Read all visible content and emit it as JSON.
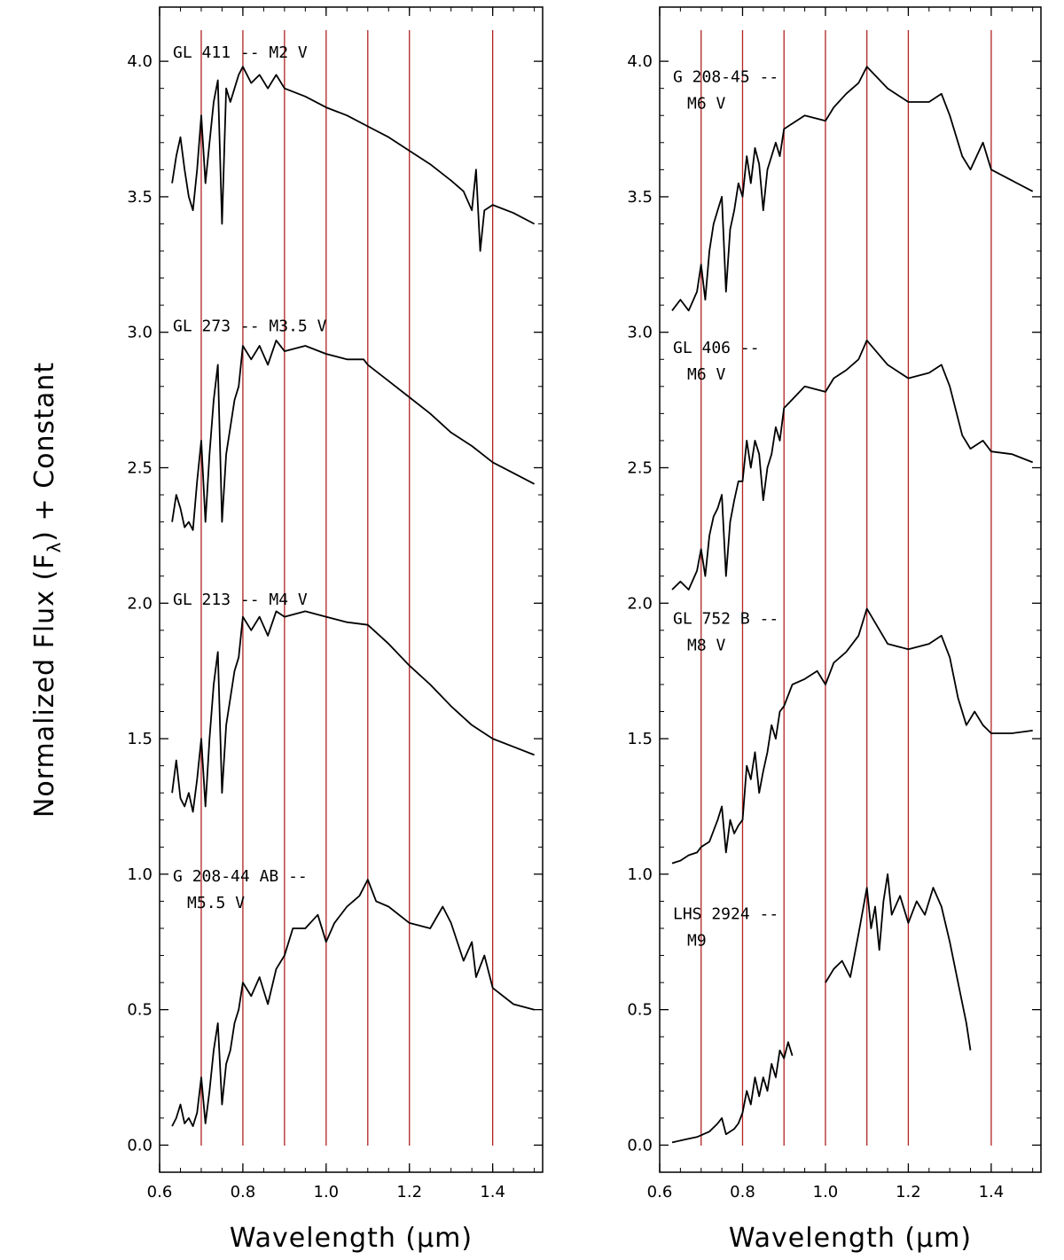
{
  "figure": {
    "ylabel": "Normalized Flux (F",
    "ylabel_sub": "λ",
    "ylabel_tail": ") + Constant"
  },
  "chart_data": [
    {
      "type": "line",
      "panel": "left",
      "xlabel": "Wavelength (μm)",
      "xlim": [
        0.6,
        1.52
      ],
      "ylim": [
        -0.1,
        4.2
      ],
      "xticks": [
        0.6,
        0.8,
        1.0,
        1.2,
        1.4
      ],
      "xtick_labels": [
        "0.6",
        "0.8",
        "1.0",
        "1.2",
        "1.4"
      ],
      "yticks": [
        0.0,
        0.5,
        1.0,
        1.5,
        2.0,
        2.5,
        3.0,
        3.5,
        4.0
      ],
      "ytick_labels": [
        "0.0",
        "0.5",
        "1.0",
        "1.5",
        "2.0",
        "2.5",
        "3.0",
        "3.5",
        "4.0"
      ],
      "reference_lines_x": [
        0.7,
        0.8,
        0.9,
        1.0,
        1.1,
        1.2,
        1.4
      ],
      "series": [
        {
          "name": "GL 411 -- M2 V",
          "label_lines": [
            "GL 411 -- M2 V"
          ],
          "label_pos": [
            0.615,
            4.04
          ],
          "x": [
            0.63,
            0.64,
            0.65,
            0.66,
            0.67,
            0.68,
            0.69,
            0.7,
            0.71,
            0.72,
            0.73,
            0.74,
            0.75,
            0.76,
            0.77,
            0.78,
            0.79,
            0.8,
            0.82,
            0.84,
            0.86,
            0.88,
            0.9,
            0.95,
            1.0,
            1.05,
            1.1,
            1.15,
            1.2,
            1.25,
            1.3,
            1.33,
            1.35,
            1.36,
            1.37,
            1.38,
            1.4,
            1.45,
            1.5
          ],
          "y": [
            3.55,
            3.65,
            3.72,
            3.6,
            3.5,
            3.45,
            3.6,
            3.8,
            3.55,
            3.7,
            3.85,
            3.93,
            3.4,
            3.9,
            3.85,
            3.9,
            3.95,
            3.98,
            3.92,
            3.95,
            3.9,
            3.95,
            3.9,
            3.87,
            3.83,
            3.8,
            3.76,
            3.72,
            3.67,
            3.62,
            3.56,
            3.52,
            3.45,
            3.6,
            3.3,
            3.45,
            3.47,
            3.44,
            3.4
          ]
        },
        {
          "name": "GL 273 -- M3.5 V",
          "label_lines": [
            "GL 273 -- M3.5 V"
          ],
          "label_pos": [
            0.615,
            3.03
          ],
          "x": [
            0.63,
            0.64,
            0.65,
            0.66,
            0.67,
            0.68,
            0.69,
            0.7,
            0.71,
            0.72,
            0.73,
            0.74,
            0.75,
            0.76,
            0.77,
            0.78,
            0.79,
            0.8,
            0.82,
            0.84,
            0.86,
            0.88,
            0.9,
            0.95,
            1.0,
            1.05,
            1.09,
            1.1,
            1.15,
            1.2,
            1.25,
            1.3,
            1.35,
            1.4,
            1.45,
            1.5
          ],
          "y": [
            2.3,
            2.4,
            2.35,
            2.28,
            2.3,
            2.27,
            2.45,
            2.6,
            2.3,
            2.55,
            2.75,
            2.88,
            2.3,
            2.55,
            2.65,
            2.75,
            2.8,
            2.95,
            2.9,
            2.95,
            2.88,
            2.97,
            2.93,
            2.95,
            2.92,
            2.9,
            2.9,
            2.88,
            2.82,
            2.76,
            2.7,
            2.63,
            2.58,
            2.52,
            2.48,
            2.44
          ]
        },
        {
          "name": "GL 213 -- M4 V",
          "label_lines": [
            "GL 213 -- M4 V"
          ],
          "label_pos": [
            0.615,
            2.02
          ],
          "x": [
            0.63,
            0.64,
            0.65,
            0.66,
            0.67,
            0.68,
            0.69,
            0.7,
            0.71,
            0.72,
            0.73,
            0.74,
            0.75,
            0.76,
            0.77,
            0.78,
            0.79,
            0.8,
            0.82,
            0.84,
            0.86,
            0.88,
            0.9,
            0.95,
            1.0,
            1.05,
            1.1,
            1.15,
            1.2,
            1.25,
            1.3,
            1.35,
            1.4,
            1.45,
            1.5
          ],
          "y": [
            1.3,
            1.42,
            1.28,
            1.25,
            1.3,
            1.23,
            1.35,
            1.5,
            1.25,
            1.5,
            1.7,
            1.82,
            1.3,
            1.55,
            1.65,
            1.75,
            1.8,
            1.95,
            1.9,
            1.95,
            1.88,
            1.97,
            1.95,
            1.97,
            1.95,
            1.93,
            1.92,
            1.85,
            1.77,
            1.7,
            1.62,
            1.55,
            1.5,
            1.47,
            1.44
          ]
        },
        {
          "name": "G 208-44 AB -- M5.5 V",
          "label_lines": [
            "G 208-44 AB --",
            "M5.5 V"
          ],
          "label_pos": [
            0.615,
            1.0
          ],
          "x": [
            0.63,
            0.64,
            0.65,
            0.66,
            0.67,
            0.68,
            0.69,
            0.7,
            0.71,
            0.72,
            0.73,
            0.74,
            0.75,
            0.76,
            0.77,
            0.78,
            0.79,
            0.8,
            0.82,
            0.84,
            0.86,
            0.88,
            0.9,
            0.92,
            0.95,
            0.98,
            1.0,
            1.02,
            1.05,
            1.08,
            1.1,
            1.12,
            1.15,
            1.2,
            1.25,
            1.28,
            1.3,
            1.33,
            1.35,
            1.36,
            1.38,
            1.4,
            1.45,
            1.5
          ],
          "y": [
            0.07,
            0.1,
            0.15,
            0.08,
            0.1,
            0.07,
            0.12,
            0.25,
            0.08,
            0.2,
            0.35,
            0.45,
            0.15,
            0.3,
            0.35,
            0.45,
            0.5,
            0.6,
            0.55,
            0.62,
            0.52,
            0.65,
            0.7,
            0.8,
            0.8,
            0.85,
            0.75,
            0.82,
            0.88,
            0.92,
            0.98,
            0.9,
            0.88,
            0.82,
            0.8,
            0.88,
            0.82,
            0.68,
            0.75,
            0.62,
            0.7,
            0.58,
            0.52,
            0.5
          ]
        }
      ]
    },
    {
      "type": "line",
      "panel": "right",
      "xlabel": "Wavelength (μm)",
      "xlim": [
        0.6,
        1.52
      ],
      "ylim": [
        -0.1,
        4.2
      ],
      "xticks": [
        0.6,
        0.8,
        1.0,
        1.2,
        1.4
      ],
      "xtick_labels": [
        "0.6",
        "0.8",
        "1.0",
        "1.2",
        "1.4"
      ],
      "yticks": [
        0.0,
        0.5,
        1.0,
        1.5,
        2.0,
        2.5,
        3.0,
        3.5,
        4.0
      ],
      "ytick_labels": [
        "0.0",
        "0.5",
        "1.0",
        "1.5",
        "2.0",
        "2.5",
        "3.0",
        "3.5",
        "4.0"
      ],
      "reference_lines_x": [
        0.7,
        0.8,
        0.9,
        1.0,
        1.1,
        1.2,
        1.4
      ],
      "series": [
        {
          "name": "G 208-45 -- M6 V",
          "label_lines": [
            "G 208-45 --",
            "M6 V"
          ],
          "label_pos": [
            0.615,
            3.95
          ],
          "x": [
            0.63,
            0.65,
            0.67,
            0.69,
            0.7,
            0.71,
            0.72,
            0.73,
            0.74,
            0.75,
            0.76,
            0.77,
            0.78,
            0.79,
            0.8,
            0.81,
            0.82,
            0.83,
            0.84,
            0.85,
            0.86,
            0.87,
            0.88,
            0.89,
            0.9,
            0.95,
            1.0,
            1.02,
            1.05,
            1.08,
            1.1,
            1.15,
            1.2,
            1.25,
            1.28,
            1.3,
            1.33,
            1.35,
            1.38,
            1.4,
            1.45,
            1.5
          ],
          "y": [
            3.08,
            3.12,
            3.08,
            3.15,
            3.25,
            3.12,
            3.3,
            3.4,
            3.45,
            3.5,
            3.15,
            3.38,
            3.45,
            3.55,
            3.5,
            3.65,
            3.55,
            3.68,
            3.62,
            3.45,
            3.6,
            3.65,
            3.7,
            3.65,
            3.75,
            3.8,
            3.78,
            3.83,
            3.88,
            3.92,
            3.98,
            3.9,
            3.85,
            3.85,
            3.88,
            3.8,
            3.65,
            3.6,
            3.7,
            3.6,
            3.56,
            3.52
          ]
        },
        {
          "name": "GL 406 -- M6 V",
          "label_lines": [
            "GL 406 --",
            "M6 V"
          ],
          "label_pos": [
            0.615,
            2.95
          ],
          "x": [
            0.63,
            0.65,
            0.67,
            0.69,
            0.7,
            0.71,
            0.72,
            0.73,
            0.74,
            0.75,
            0.76,
            0.77,
            0.78,
            0.79,
            0.8,
            0.81,
            0.82,
            0.83,
            0.84,
            0.85,
            0.86,
            0.87,
            0.88,
            0.89,
            0.9,
            0.95,
            1.0,
            1.02,
            1.05,
            1.08,
            1.1,
            1.15,
            1.2,
            1.25,
            1.28,
            1.3,
            1.33,
            1.35,
            1.38,
            1.4,
            1.45,
            1.5
          ],
          "y": [
            2.05,
            2.08,
            2.05,
            2.12,
            2.2,
            2.1,
            2.25,
            2.32,
            2.35,
            2.4,
            2.1,
            2.3,
            2.38,
            2.45,
            2.45,
            2.6,
            2.5,
            2.6,
            2.55,
            2.38,
            2.5,
            2.55,
            2.65,
            2.6,
            2.72,
            2.8,
            2.78,
            2.83,
            2.86,
            2.9,
            2.97,
            2.88,
            2.83,
            2.85,
            2.88,
            2.8,
            2.62,
            2.57,
            2.6,
            2.56,
            2.55,
            2.52
          ]
        },
        {
          "name": "GL 752 B -- M8 V",
          "label_lines": [
            "GL 752 B --",
            "M8 V"
          ],
          "label_pos": [
            0.615,
            1.95
          ],
          "x": [
            0.63,
            0.65,
            0.67,
            0.69,
            0.7,
            0.72,
            0.74,
            0.75,
            0.76,
            0.77,
            0.78,
            0.79,
            0.8,
            0.81,
            0.82,
            0.83,
            0.84,
            0.85,
            0.86,
            0.87,
            0.88,
            0.89,
            0.9,
            0.92,
            0.95,
            0.98,
            1.0,
            1.02,
            1.05,
            1.08,
            1.1,
            1.15,
            1.2,
            1.25,
            1.28,
            1.3,
            1.32,
            1.34,
            1.36,
            1.38,
            1.4,
            1.45,
            1.5
          ],
          "y": [
            1.04,
            1.05,
            1.07,
            1.08,
            1.1,
            1.12,
            1.2,
            1.25,
            1.08,
            1.2,
            1.15,
            1.18,
            1.2,
            1.4,
            1.35,
            1.45,
            1.3,
            1.38,
            1.45,
            1.55,
            1.5,
            1.6,
            1.62,
            1.7,
            1.72,
            1.75,
            1.7,
            1.78,
            1.82,
            1.88,
            1.98,
            1.85,
            1.83,
            1.85,
            1.88,
            1.8,
            1.65,
            1.55,
            1.6,
            1.55,
            1.52,
            1.52,
            1.53
          ]
        },
        {
          "name": "LHS 2924 -- M9",
          "label_lines": [
            "LHS 2924 --",
            "M9"
          ],
          "label_pos": [
            0.615,
            0.86
          ],
          "x": [
            0.63,
            0.66,
            0.69,
            0.72,
            0.74,
            0.75,
            0.76,
            0.78,
            0.79,
            0.8,
            0.81,
            0.82,
            0.83,
            0.84,
            0.85,
            0.86,
            0.87,
            0.88,
            0.89,
            0.9,
            0.91,
            0.92
          ],
          "y": [
            0.01,
            0.02,
            0.03,
            0.05,
            0.08,
            0.1,
            0.04,
            0.06,
            0.08,
            0.12,
            0.2,
            0.15,
            0.25,
            0.18,
            0.25,
            0.2,
            0.3,
            0.25,
            0.35,
            0.32,
            0.38,
            0.33
          ]
        },
        {
          "name": "LHS 2924 -- M9 (segment 2)",
          "label_lines": [],
          "x": [
            1.0,
            1.02,
            1.04,
            1.06,
            1.08,
            1.1,
            1.11,
            1.12,
            1.13,
            1.14,
            1.15,
            1.16,
            1.18,
            1.2,
            1.22,
            1.24,
            1.26,
            1.28,
            1.3,
            1.32,
            1.34,
            1.35
          ],
          "y": [
            0.6,
            0.65,
            0.68,
            0.62,
            0.78,
            0.95,
            0.8,
            0.88,
            0.72,
            0.9,
            1.0,
            0.85,
            0.92,
            0.82,
            0.9,
            0.85,
            0.95,
            0.88,
            0.75,
            0.6,
            0.45,
            0.35
          ]
        }
      ]
    }
  ],
  "colors": {
    "spectrum": "#000000",
    "reference_line": "#b22222",
    "frame": "#000000"
  }
}
